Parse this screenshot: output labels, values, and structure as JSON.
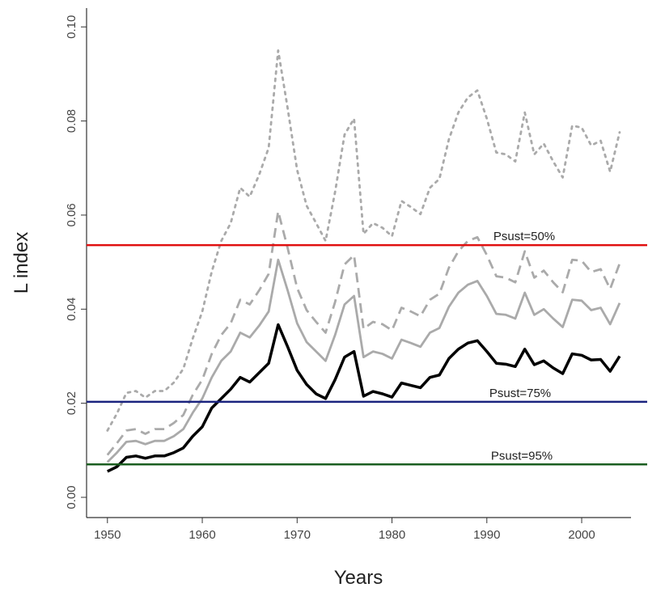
{
  "chart_data": {
    "type": "line",
    "x_label": "Years",
    "y_label": "L index",
    "x": [
      1950,
      1951,
      1952,
      1953,
      1954,
      1955,
      1956,
      1957,
      1958,
      1959,
      1960,
      1961,
      1962,
      1963,
      1964,
      1965,
      1966,
      1967,
      1968,
      1969,
      1970,
      1971,
      1972,
      1973,
      1974,
      1975,
      1976,
      1977,
      1978,
      1979,
      1980,
      1981,
      1982,
      1983,
      1984,
      1985,
      1986,
      1987,
      1988,
      1989,
      1990,
      1991,
      1992,
      1993,
      1994,
      1995,
      1996,
      1997,
      1998,
      1999,
      2000,
      2001,
      2002,
      2003,
      2004
    ],
    "series": [
      {
        "color": "#aaaaaa",
        "style": "dotted",
        "values": [
          0.0142,
          0.0178,
          0.0222,
          0.0226,
          0.0212,
          0.0226,
          0.0226,
          0.0244,
          0.0273,
          0.0338,
          0.0395,
          0.048,
          0.0545,
          0.0583,
          0.0658,
          0.0639,
          0.0686,
          0.0743,
          0.095,
          0.0827,
          0.0696,
          0.062,
          0.0583,
          0.0545,
          0.0649,
          0.0771,
          0.0805,
          0.056,
          0.0583,
          0.0573,
          0.0555,
          0.063,
          0.0617,
          0.0602,
          0.0658,
          0.0677,
          0.0761,
          0.0818,
          0.085,
          0.0865,
          0.0805,
          0.0733,
          0.0729,
          0.0714,
          0.0818,
          0.0729,
          0.0752,
          0.0714,
          0.068,
          0.079,
          0.0786,
          0.0748,
          0.0758,
          0.0692,
          0.0776
        ]
      },
      {
        "color": "#aaaaaa",
        "style": "dashed",
        "values": [
          0.009,
          0.0115,
          0.0142,
          0.0145,
          0.0135,
          0.0145,
          0.0145,
          0.0158,
          0.0175,
          0.0218,
          0.025,
          0.0305,
          0.0345,
          0.037,
          0.042,
          0.041,
          0.044,
          0.0475,
          0.0608,
          0.053,
          0.0445,
          0.0398,
          0.0373,
          0.035,
          0.0415,
          0.0495,
          0.0515,
          0.0358,
          0.0373,
          0.0368,
          0.0355,
          0.0403,
          0.0395,
          0.0385,
          0.042,
          0.0433,
          0.0488,
          0.0523,
          0.0545,
          0.0553,
          0.0515,
          0.047,
          0.0467,
          0.0457,
          0.0523,
          0.0467,
          0.0482,
          0.0457,
          0.0436,
          0.0505,
          0.0503,
          0.0479,
          0.0485,
          0.0443,
          0.0497
        ]
      },
      {
        "color": "#aaaaaa",
        "style": "solid",
        "values": [
          0.0075,
          0.0095,
          0.0118,
          0.012,
          0.0113,
          0.012,
          0.012,
          0.013,
          0.0145,
          0.018,
          0.021,
          0.0255,
          0.029,
          0.031,
          0.035,
          0.034,
          0.0365,
          0.0395,
          0.0505,
          0.044,
          0.037,
          0.033,
          0.031,
          0.029,
          0.0345,
          0.041,
          0.0428,
          0.0298,
          0.031,
          0.0305,
          0.0295,
          0.0335,
          0.0328,
          0.032,
          0.035,
          0.036,
          0.0405,
          0.0435,
          0.0452,
          0.046,
          0.0428,
          0.039,
          0.0388,
          0.038,
          0.0435,
          0.0388,
          0.04,
          0.038,
          0.0362,
          0.042,
          0.0418,
          0.0398,
          0.0403,
          0.0368,
          0.0413
        ]
      },
      {
        "color": "#000000",
        "style": "solid",
        "values": [
          0.0055,
          0.0065,
          0.0085,
          0.0088,
          0.0083,
          0.0088,
          0.0088,
          0.0095,
          0.0105,
          0.013,
          0.015,
          0.019,
          0.021,
          0.023,
          0.0255,
          0.0245,
          0.0265,
          0.0285,
          0.0367,
          0.032,
          0.027,
          0.024,
          0.022,
          0.021,
          0.025,
          0.0298,
          0.031,
          0.0215,
          0.0225,
          0.022,
          0.0213,
          0.0243,
          0.0238,
          0.0233,
          0.0255,
          0.026,
          0.0295,
          0.0315,
          0.0328,
          0.0333,
          0.031,
          0.0285,
          0.0283,
          0.0278,
          0.0315,
          0.0282,
          0.029,
          0.0275,
          0.0263,
          0.0305,
          0.0302,
          0.0292,
          0.0293,
          0.0268,
          0.03
        ]
      }
    ],
    "hlines": [
      {
        "value": 0.0536,
        "color": "#e01010",
        "label": "Psust=50%"
      },
      {
        "value": 0.0203,
        "color": "#1a237e",
        "label": "Psust=75%"
      },
      {
        "value": 0.007,
        "color": "#1b5e20",
        "label": "Psust=95%"
      }
    ],
    "xlim": [
      1947.8,
      2005.2
    ],
    "ylim": [
      -0.0043,
      0.104
    ],
    "xticks": [
      1950,
      1960,
      1970,
      1980,
      1990,
      2000
    ],
    "yticks": [
      {
        "value": 0,
        "label": "0.00"
      },
      {
        "value": 0.02,
        "label": "0.02"
      },
      {
        "value": 0.04,
        "label": "0.04"
      },
      {
        "value": 0.06,
        "label": "0.06"
      },
      {
        "value": 0.08,
        "label": "0.08"
      },
      {
        "value": 0.1,
        "label": "0.10"
      }
    ]
  }
}
